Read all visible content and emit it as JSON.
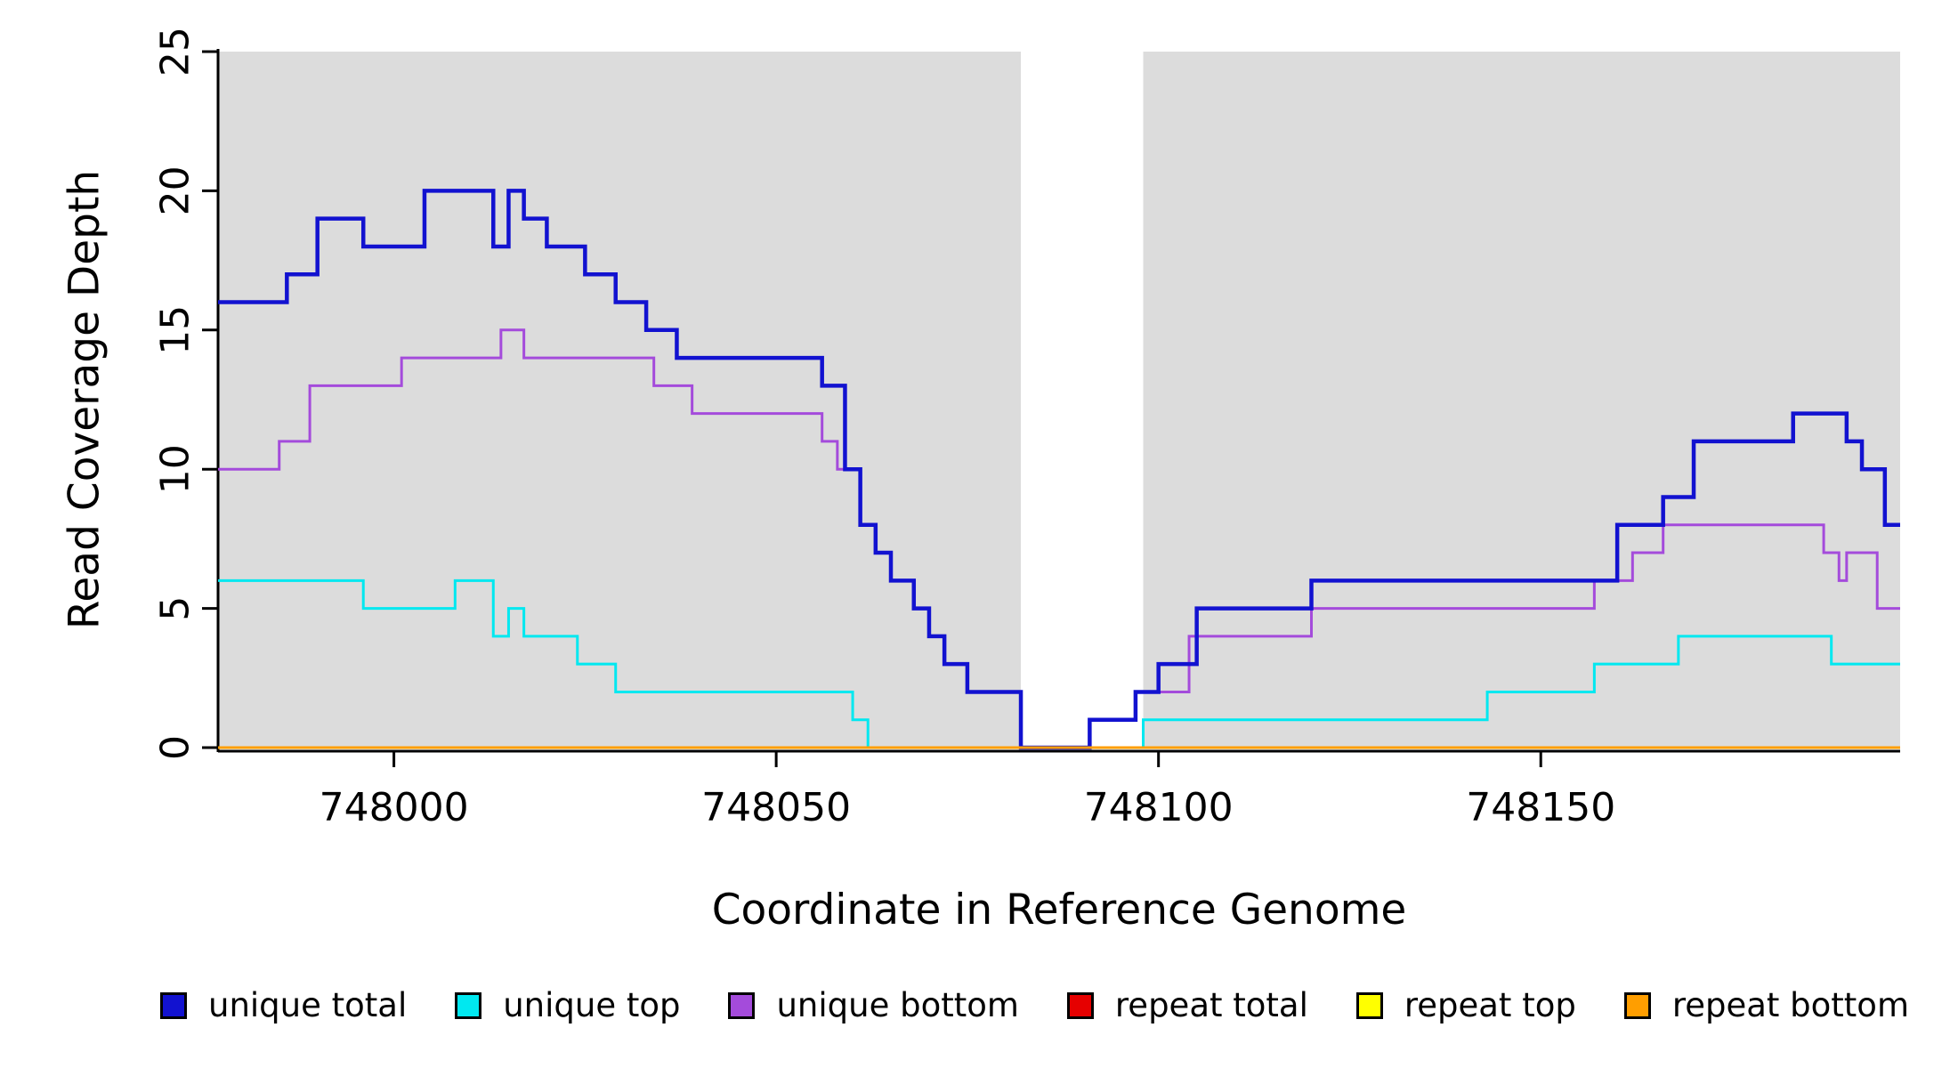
{
  "chart_data": {
    "type": "line",
    "step": "after",
    "title": "",
    "xlabel": "Coordinate in Reference Genome",
    "ylabel": "Read Coverage Depth",
    "xlim": [
      747977,
      748197
    ],
    "ylim": [
      0,
      25
    ],
    "xticks": [
      748000,
      748050,
      748100,
      748150
    ],
    "yticks": [
      0,
      5,
      10,
      15,
      20,
      25
    ],
    "grid": false,
    "legend_position": "bottom",
    "axis_color": "#000000",
    "shaded_regions": {
      "color": "#DCDCDC",
      "ranges": [
        [
          747977,
          748082
        ],
        [
          748098,
          748197
        ]
      ]
    },
    "draw_order": [
      "repeat total",
      "repeat top",
      "unique bottom",
      "unique top",
      "unique total",
      "repeat bottom"
    ],
    "series": [
      {
        "name": "unique total",
        "color": "#1212D0",
        "points": [
          [
            747977,
            16
          ],
          [
            747986,
            17
          ],
          [
            747990,
            19
          ],
          [
            747996,
            18
          ],
          [
            748004,
            20
          ],
          [
            748013,
            18
          ],
          [
            748015,
            20
          ],
          [
            748017,
            19
          ],
          [
            748020,
            18
          ],
          [
            748025,
            17
          ],
          [
            748029,
            16
          ],
          [
            748033,
            15
          ],
          [
            748037,
            14
          ],
          [
            748056,
            13
          ],
          [
            748059,
            10
          ],
          [
            748061,
            8
          ],
          [
            748063,
            7
          ],
          [
            748065,
            6
          ],
          [
            748068,
            5
          ],
          [
            748070,
            4
          ],
          [
            748072,
            3
          ],
          [
            748075,
            2
          ],
          [
            748082,
            0
          ],
          [
            748091,
            1
          ],
          [
            748097,
            2
          ],
          [
            748100,
            3
          ],
          [
            748105,
            5
          ],
          [
            748120,
            6
          ],
          [
            748160,
            8
          ],
          [
            748166,
            9
          ],
          [
            748170,
            11
          ],
          [
            748183,
            12
          ],
          [
            748190,
            11
          ],
          [
            748192,
            10
          ],
          [
            748195,
            8
          ]
        ]
      },
      {
        "name": "unique top",
        "color": "#00E8F0",
        "points": [
          [
            747977,
            6
          ],
          [
            747996,
            5
          ],
          [
            748008,
            6
          ],
          [
            748013,
            4
          ],
          [
            748015,
            5
          ],
          [
            748017,
            4
          ],
          [
            748024,
            3
          ],
          [
            748029,
            2
          ],
          [
            748060,
            1
          ],
          [
            748062,
            0
          ],
          [
            748098,
            1
          ],
          [
            748143,
            2
          ],
          [
            748157,
            3
          ],
          [
            748168,
            4
          ],
          [
            748188,
            3
          ]
        ]
      },
      {
        "name": "unique bottom",
        "color": "#A44BDB",
        "points": [
          [
            747977,
            10
          ],
          [
            747985,
            11
          ],
          [
            747989,
            13
          ],
          [
            748001,
            14
          ],
          [
            748014,
            15
          ],
          [
            748017,
            14
          ],
          [
            748034,
            13
          ],
          [
            748039,
            12
          ],
          [
            748056,
            11
          ],
          [
            748058,
            10
          ],
          [
            748061,
            8
          ],
          [
            748063,
            7
          ],
          [
            748065,
            6
          ],
          [
            748068,
            5
          ],
          [
            748070,
            4
          ],
          [
            748072,
            3
          ],
          [
            748075,
            2
          ],
          [
            748082,
            0
          ],
          [
            748091,
            1
          ],
          [
            748097,
            2
          ],
          [
            748104,
            4
          ],
          [
            748120,
            5
          ],
          [
            748157,
            6
          ],
          [
            748162,
            7
          ],
          [
            748166,
            8
          ],
          [
            748187,
            7
          ],
          [
            748189,
            6
          ],
          [
            748190,
            7
          ],
          [
            748194,
            5
          ]
        ]
      },
      {
        "name": "repeat total",
        "color": "#E60000",
        "points": [
          [
            747977,
            0
          ]
        ]
      },
      {
        "name": "repeat top",
        "color": "#FFFF00",
        "points": [
          [
            747977,
            0
          ]
        ]
      },
      {
        "name": "repeat bottom",
        "color": "#FF9E00",
        "points": [
          [
            747977,
            0
          ]
        ]
      }
    ]
  }
}
